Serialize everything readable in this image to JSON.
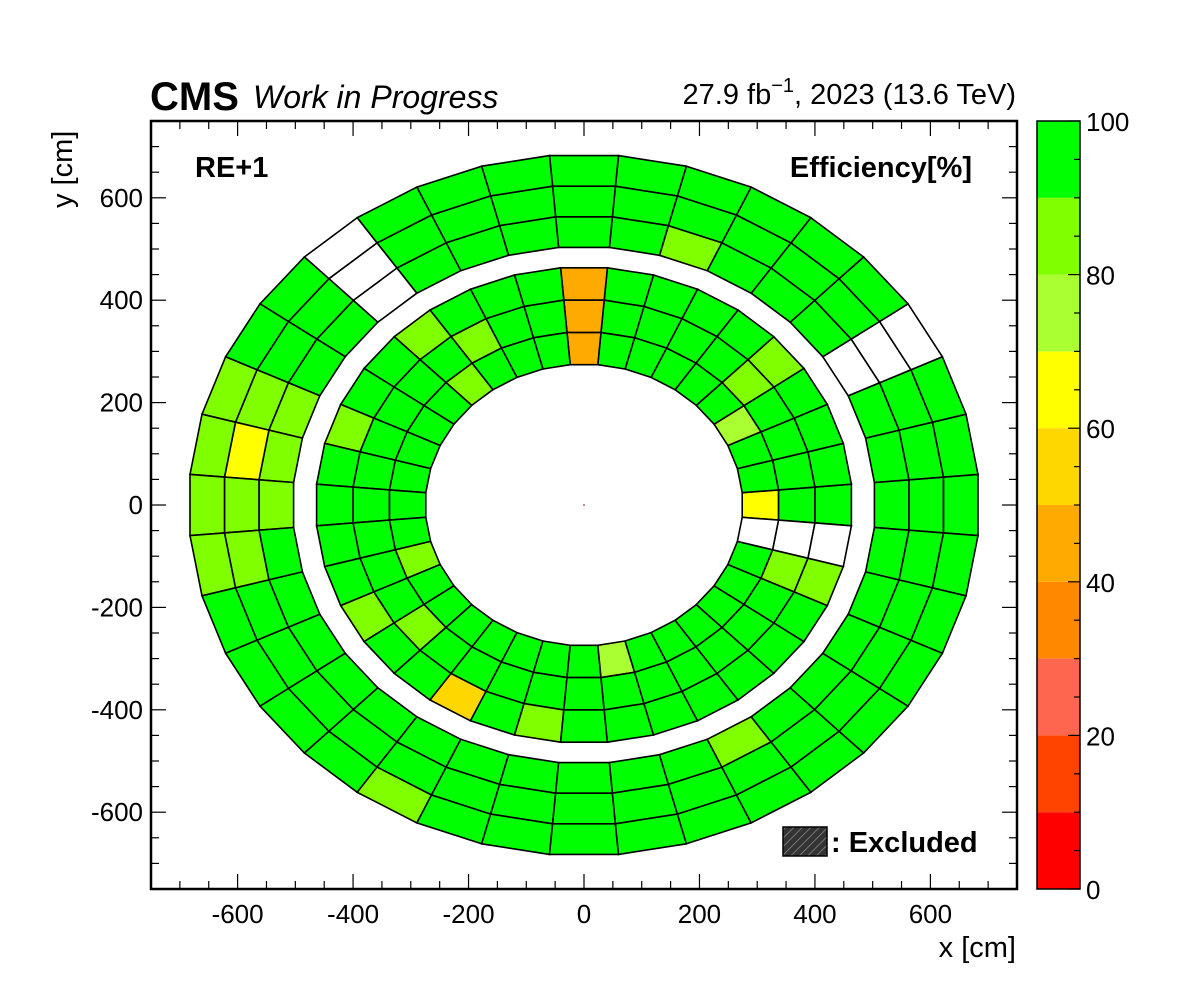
{
  "header": {
    "experiment": "CMS",
    "extra_text": "Work in Progress",
    "lumi_text": "27.9 fb",
    "lumi_exponent": "−1",
    "lumi_suffix": ", 2023 (13.6 TeV)"
  },
  "chart_data": {
    "type": "heatmap",
    "subtype": "polar-segment-map",
    "station_label": "RE+1",
    "z_title": "Efficiency[%]",
    "xlabel": "x [cm]",
    "ylabel": "y [cm]",
    "xlim": [
      -750,
      750
    ],
    "ylim": [
      -750,
      750
    ],
    "x_ticks": [
      "-600",
      "-400",
      "-200",
      "0",
      "200",
      "400",
      "600"
    ],
    "y_ticks": [
      "-600",
      "-400",
      "-200",
      "0",
      "200",
      "400",
      "600"
    ],
    "zlim": [
      0,
      100
    ],
    "z_ticks": [
      "0",
      "20",
      "40",
      "60",
      "80",
      "100"
    ],
    "palette": [
      {
        "range": [
          0,
          10
        ],
        "color": "#ff0000"
      },
      {
        "range": [
          10,
          20
        ],
        "color": "#ff4400"
      },
      {
        "range": [
          20,
          30
        ],
        "color": "#ff6650"
      },
      {
        "range": [
          30,
          40
        ],
        "color": "#ff8800"
      },
      {
        "range": [
          40,
          50
        ],
        "color": "#ffaa00"
      },
      {
        "range": [
          50,
          60
        ],
        "color": "#ffd700"
      },
      {
        "range": [
          60,
          70
        ],
        "color": "#ffff00"
      },
      {
        "range": [
          70,
          80
        ],
        "color": "#aaff33"
      },
      {
        "range": [
          80,
          90
        ],
        "color": "#80ff00"
      },
      {
        "range": [
          90,
          100
        ],
        "color": "#00ff00"
      }
    ],
    "excluded_label": ": Excluded",
    "rings": [
      {
        "name": "inner",
        "r_in": 275,
        "r_out": 465,
        "layers": 3,
        "sectors": 36,
        "default": 96,
        "cells": [
          {
            "sector": 0,
            "layer": 0,
            "value": 62
          },
          {
            "sector": 35,
            "layer": 0,
            "value": null
          },
          {
            "sector": 35,
            "layer": 1,
            "value": null
          },
          {
            "sector": 35,
            "layer": 2,
            "value": null
          },
          {
            "sector": 34,
            "layer": 1,
            "value": 85
          },
          {
            "sector": 34,
            "layer": 2,
            "value": 85
          },
          {
            "sector": 3,
            "layer": 0,
            "value": 75
          },
          {
            "sector": 4,
            "layer": 1,
            "value": 85
          },
          {
            "sector": 4,
            "layer": 2,
            "value": 85
          },
          {
            "sector": 9,
            "layer": 0,
            "value": 46
          },
          {
            "sector": 9,
            "layer": 1,
            "value": 40
          },
          {
            "sector": 9,
            "layer": 2,
            "value": 46
          },
          {
            "sector": 13,
            "layer": 0,
            "value": 85
          },
          {
            "sector": 12,
            "layer": 1,
            "value": 85
          },
          {
            "sector": 13,
            "layer": 2,
            "value": 85
          },
          {
            "sector": 16,
            "layer": 2,
            "value": 85
          },
          {
            "sector": 20,
            "layer": 0,
            "value": 85
          },
          {
            "sector": 21,
            "layer": 2,
            "value": 85
          },
          {
            "sector": 22,
            "layer": 1,
            "value": 85
          },
          {
            "sector": 24,
            "layer": 2,
            "value": 55
          },
          {
            "sector": 26,
            "layer": 2,
            "value": 85
          },
          {
            "sector": 28,
            "layer": 0,
            "value": 75
          }
        ]
      },
      {
        "name": "outer",
        "r_in": 505,
        "r_out": 685,
        "layers": 3,
        "sectors": 36,
        "default": 96,
        "cells": [
          {
            "sector": 17,
            "layer": 1,
            "value": 62
          },
          {
            "sector": 16,
            "layer": 0,
            "value": 85
          },
          {
            "sector": 16,
            "layer": 1,
            "value": 85
          },
          {
            "sector": 16,
            "layer": 2,
            "value": 85
          },
          {
            "sector": 17,
            "layer": 0,
            "value": 85
          },
          {
            "sector": 17,
            "layer": 2,
            "value": 85
          },
          {
            "sector": 18,
            "layer": 0,
            "value": 85
          },
          {
            "sector": 18,
            "layer": 1,
            "value": 85
          },
          {
            "sector": 18,
            "layer": 2,
            "value": 85
          },
          {
            "sector": 19,
            "layer": 1,
            "value": 85
          },
          {
            "sector": 19,
            "layer": 2,
            "value": 85
          },
          {
            "sector": 13,
            "layer": 0,
            "value": null
          },
          {
            "sector": 13,
            "layer": 1,
            "value": null
          },
          {
            "sector": 13,
            "layer": 2,
            "value": null
          },
          {
            "sector": 3,
            "layer": 0,
            "value": null
          },
          {
            "sector": 3,
            "layer": 1,
            "value": null
          },
          {
            "sector": 3,
            "layer": 2,
            "value": null
          },
          {
            "sector": 7,
            "layer": 0,
            "value": 85
          },
          {
            "sector": 24,
            "layer": 2,
            "value": 85
          },
          {
            "sector": 30,
            "layer": 0,
            "value": 85
          }
        ]
      }
    ]
  }
}
